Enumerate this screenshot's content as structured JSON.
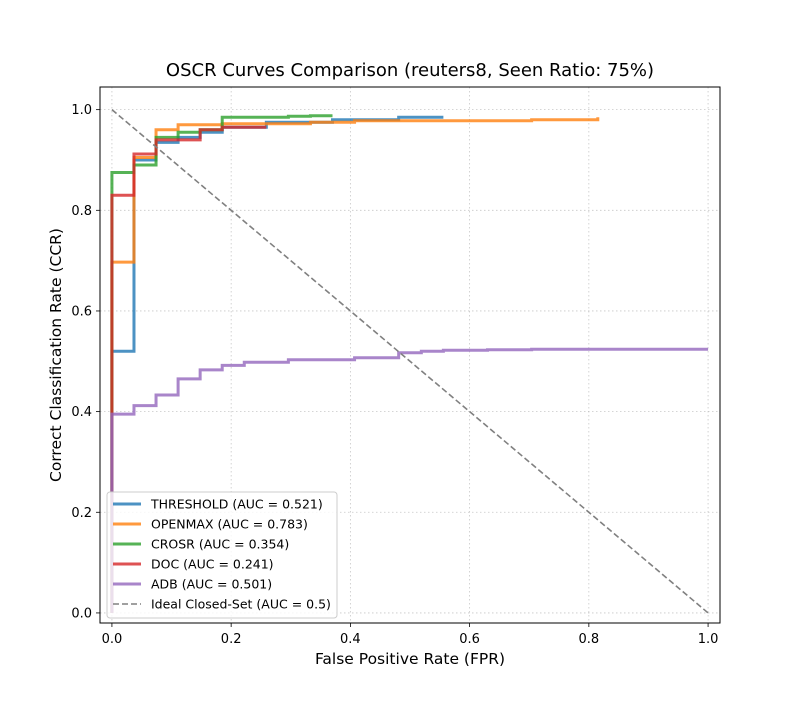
{
  "chart_data": {
    "type": "line",
    "title": "OSCR Curves Comparison (reuters8, Seen Ratio: 75%)",
    "xlabel": "False Positive Rate (FPR)",
    "ylabel": "Correct Classification Rate (CCR)",
    "xlim": [
      -0.02,
      1.02
    ],
    "ylim": [
      -0.02,
      1.045
    ],
    "xticks": [
      0.0,
      0.2,
      0.4,
      0.6,
      0.8,
      1.0
    ],
    "yticks": [
      0.0,
      0.2,
      0.4,
      0.6,
      0.8,
      1.0
    ],
    "xtick_labels": [
      "0.0",
      "0.2",
      "0.4",
      "0.6",
      "0.8",
      "1.0"
    ],
    "ytick_labels": [
      "0.0",
      "0.2",
      "0.4",
      "0.6",
      "0.8",
      "1.0"
    ],
    "grid": true,
    "legend_position": "lower-left",
    "series": [
      {
        "name": "THRESHOLD (AUC = 0.521)",
        "color": "#1f77b4",
        "style": "solid",
        "x": [
          0.0,
          0.0,
          0.037,
          0.037,
          0.074,
          0.074,
          0.111,
          0.111,
          0.148,
          0.148,
          0.185,
          0.185,
          0.259,
          0.259,
          0.37,
          0.37,
          0.481,
          0.481,
          0.556
        ],
        "y": [
          0.0,
          0.52,
          0.52,
          0.9,
          0.9,
          0.935,
          0.935,
          0.945,
          0.945,
          0.955,
          0.955,
          0.965,
          0.965,
          0.975,
          0.975,
          0.98,
          0.98,
          0.985,
          0.985
        ]
      },
      {
        "name": "OPENMAX (AUC = 0.783)",
        "color": "#ff7f0e",
        "style": "solid",
        "x": [
          0.0,
          0.0,
          0.037,
          0.037,
          0.074,
          0.074,
          0.111,
          0.111,
          0.185,
          0.185,
          0.333,
          0.333,
          0.407,
          0.407,
          0.704,
          0.704,
          0.815,
          0.815
        ],
        "y": [
          0.0,
          0.697,
          0.697,
          0.905,
          0.905,
          0.96,
          0.96,
          0.97,
          0.97,
          0.972,
          0.972,
          0.975,
          0.975,
          0.978,
          0.978,
          0.98,
          0.98,
          0.985
        ]
      },
      {
        "name": "CROSR (AUC = 0.354)",
        "color": "#2ca02c",
        "style": "solid",
        "x": [
          0.0,
          0.0,
          0.037,
          0.037,
          0.074,
          0.074,
          0.111,
          0.111,
          0.148,
          0.148,
          0.185,
          0.185,
          0.296,
          0.296,
          0.333,
          0.333,
          0.37
        ],
        "y": [
          0.0,
          0.875,
          0.875,
          0.89,
          0.89,
          0.945,
          0.945,
          0.955,
          0.955,
          0.96,
          0.96,
          0.985,
          0.985,
          0.987,
          0.987,
          0.988,
          0.988
        ]
      },
      {
        "name": "DOC (AUC = 0.241)",
        "color": "#d62728",
        "style": "solid",
        "x": [
          0.0,
          0.0,
          0.037,
          0.037,
          0.074,
          0.074,
          0.148,
          0.148,
          0.185,
          0.185,
          0.259
        ],
        "y": [
          0.0,
          0.83,
          0.83,
          0.912,
          0.912,
          0.94,
          0.94,
          0.96,
          0.96,
          0.965,
          0.965
        ]
      },
      {
        "name": "ADB (AUC = 0.501)",
        "color": "#9467bd",
        "style": "solid",
        "x": [
          0.0,
          0.0,
          0.037,
          0.037,
          0.074,
          0.074,
          0.111,
          0.111,
          0.148,
          0.148,
          0.185,
          0.185,
          0.222,
          0.222,
          0.296,
          0.296,
          0.407,
          0.407,
          0.481,
          0.481,
          0.519,
          0.519,
          0.556,
          0.556,
          0.63,
          0.63,
          0.704,
          0.704,
          1.0
        ],
        "y": [
          0.0,
          0.395,
          0.395,
          0.412,
          0.412,
          0.433,
          0.433,
          0.465,
          0.465,
          0.483,
          0.483,
          0.492,
          0.492,
          0.498,
          0.498,
          0.503,
          0.503,
          0.507,
          0.507,
          0.517,
          0.517,
          0.52,
          0.52,
          0.522,
          0.522,
          0.523,
          0.523,
          0.524,
          0.524
        ]
      },
      {
        "name": "Ideal Closed-Set (AUC = 0.5)",
        "color": "#808080",
        "style": "dashed",
        "x": [
          0.0,
          1.0
        ],
        "y": [
          1.0,
          0.0
        ]
      }
    ]
  }
}
